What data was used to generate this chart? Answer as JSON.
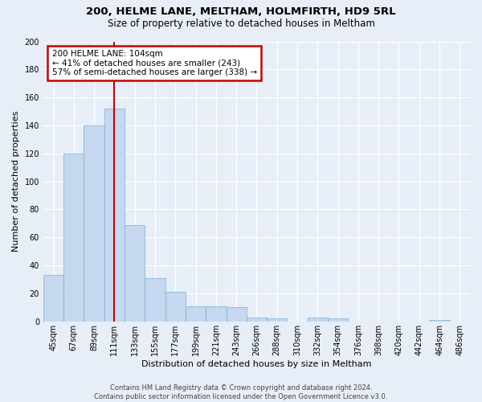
{
  "title1": "200, HELME LANE, MELTHAM, HOLMFIRTH, HD9 5RL",
  "title2": "Size of property relative to detached houses in Meltham",
  "xlabel": "Distribution of detached houses by size in Meltham",
  "ylabel": "Number of detached properties",
  "footer": "Contains HM Land Registry data © Crown copyright and database right 2024.\nContains public sector information licensed under the Open Government Licence v3.0.",
  "bin_labels": [
    "45sqm",
    "67sqm",
    "89sqm",
    "111sqm",
    "133sqm",
    "155sqm",
    "177sqm",
    "199sqm",
    "221sqm",
    "243sqm",
    "266sqm",
    "288sqm",
    "310sqm",
    "332sqm",
    "354sqm",
    "376sqm",
    "398sqm",
    "420sqm",
    "442sqm",
    "464sqm",
    "486sqm"
  ],
  "bar_values": [
    33,
    120,
    140,
    152,
    69,
    31,
    21,
    11,
    11,
    10,
    3,
    2,
    0,
    3,
    2,
    0,
    0,
    0,
    0,
    1,
    0
  ],
  "bar_color": "#c5d8ef",
  "bar_edge_color": "#7aadd4",
  "vline_x_idx": 3,
  "vline_color": "#cc0000",
  "annotation_text": "200 HELME LANE: 104sqm\n← 41% of detached houses are smaller (243)\n57% of semi-detached houses are larger (338) →",
  "annotation_box_color": "#cc0000",
  "ylim": [
    0,
    200
  ],
  "yticks": [
    0,
    20,
    40,
    60,
    80,
    100,
    120,
    140,
    160,
    180,
    200
  ],
  "bg_color": "#e8eef7",
  "plot_bg_color": "#e8eef7",
  "title1_fontsize": 9.5,
  "title2_fontsize": 8.5,
  "xlabel_fontsize": 8,
  "ylabel_fontsize": 8,
  "tick_fontsize": 7,
  "footer_fontsize": 6
}
